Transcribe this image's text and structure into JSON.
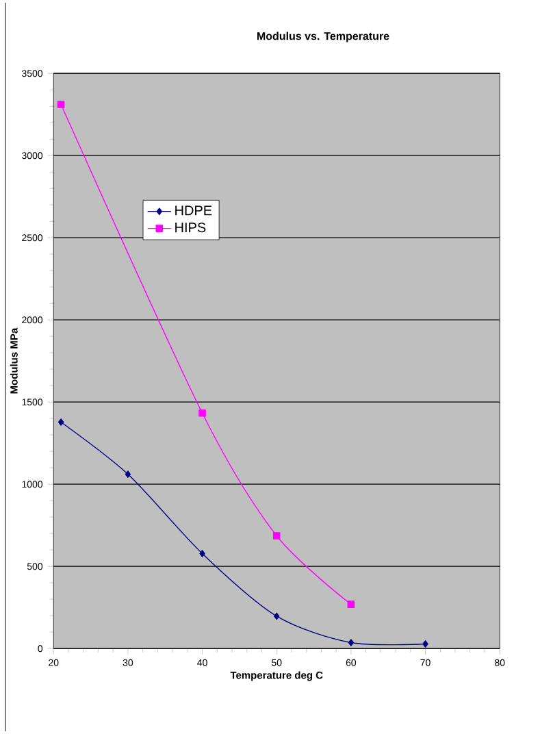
{
  "chart_data": {
    "type": "line",
    "title": "Modulus vs. Temperature",
    "xlabel": "Temperature deg C",
    "ylabel": "Modulus MPa",
    "series": [
      {
        "name": "HDPE",
        "color": "#000080",
        "marker": "diamond",
        "x": [
          21,
          30,
          40,
          50,
          60,
          70
        ],
        "values": [
          1378,
          1061,
          578,
          197,
          36,
          28
        ]
      },
      {
        "name": "HIPS",
        "color": "#ff00ff",
        "marker": "square",
        "x": [
          21,
          40,
          50,
          60
        ],
        "values": [
          3311,
          1433,
          686,
          269
        ]
      }
    ],
    "xlim": [
      20,
      80
    ],
    "xticks": [
      20,
      30,
      40,
      50,
      60,
      70,
      80
    ],
    "ylim": [
      0,
      3500
    ],
    "yticks": [
      0,
      500,
      1000,
      1500,
      2000,
      2500,
      3000,
      3500
    ],
    "grid": "y",
    "legend": "top left",
    "line_style": "solid"
  }
}
